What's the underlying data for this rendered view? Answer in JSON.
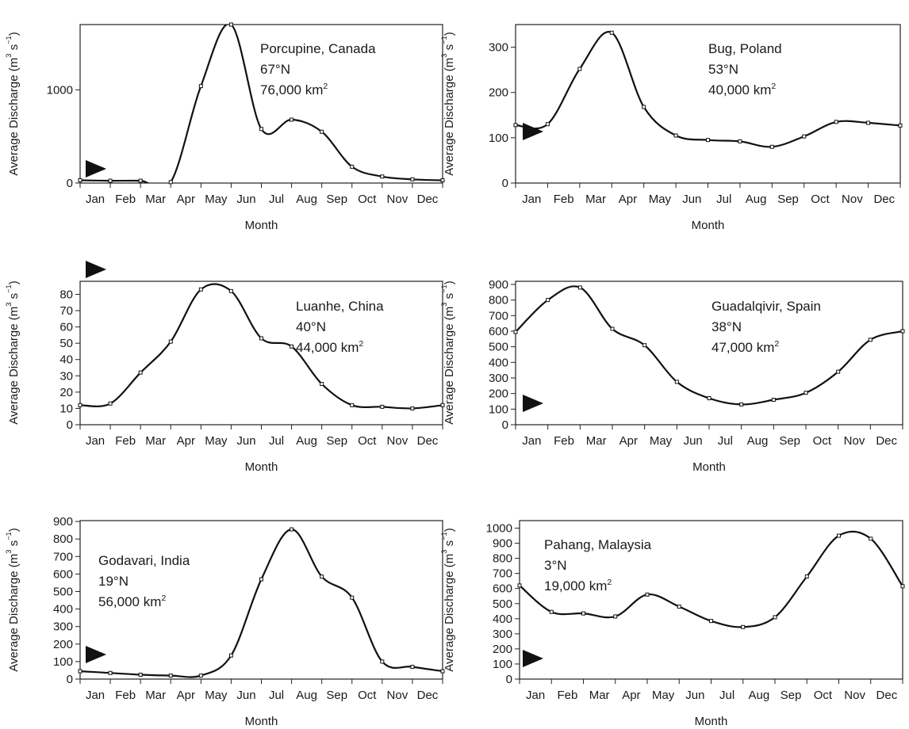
{
  "chart_data": [
    {
      "type": "line",
      "ylabel": "Average Discharge (m³ s⁻¹)",
      "xlabel": "Month",
      "info": [
        "Porcupine, Canada",
        "67°N",
        "76,000 km²"
      ],
      "categories": [
        "Jan",
        "Feb",
        "Mar",
        "Apr",
        "May",
        "Jun",
        "Jul",
        "Aug",
        "Sep",
        "Oct",
        "Nov",
        "Dec"
      ],
      "x": [
        0,
        1,
        2,
        3,
        4,
        5,
        6,
        7,
        8,
        9,
        10,
        11,
        12,
        13
      ],
      "values": [
        30,
        25,
        25,
        10,
        1040,
        1700,
        580,
        680,
        550,
        175,
        70,
        40,
        30,
        30
      ],
      "ylim": [
        0,
        1700
      ],
      "yticks": [
        0,
        1000
      ],
      "grid": false
    },
    {
      "type": "line",
      "ylabel": "Average Discharge (m³ s⁻¹)",
      "xlabel": "Month",
      "info": [
        "Bug, Poland",
        "53°N",
        "40,000 km²"
      ],
      "categories": [
        "Jan",
        "Feb",
        "Mar",
        "Apr",
        "May",
        "Jun",
        "Jul",
        "Aug",
        "Sep",
        "Oct",
        "Nov",
        "Dec"
      ],
      "x": [
        0,
        1,
        2,
        3,
        4,
        5,
        6,
        7,
        8,
        9,
        10,
        11,
        12
      ],
      "values": [
        128,
        130,
        252,
        332,
        168,
        105,
        95,
        92,
        80,
        103,
        135,
        133,
        127
      ],
      "ylim": [
        0,
        350
      ],
      "yticks": [
        0,
        100,
        200,
        300
      ],
      "grid": false
    },
    {
      "type": "line",
      "ylabel": "Average Discharge (m³ s⁻¹)",
      "xlabel": "Month",
      "info": [
        "Luanhe, China",
        "40°N",
        "44,000 km²"
      ],
      "categories": [
        "Jan",
        "Feb",
        "Mar",
        "Apr",
        "May",
        "Jun",
        "Jul",
        "Aug",
        "Sep",
        "Oct",
        "Nov",
        "Dec"
      ],
      "x": [
        0,
        1,
        2,
        3,
        4,
        5,
        6,
        7,
        8,
        9,
        10,
        11,
        12
      ],
      "values": [
        12,
        13,
        32,
        51,
        83,
        82,
        53,
        48,
        25,
        12,
        11,
        10,
        12
      ],
      "ylim": [
        0,
        88
      ],
      "yticks": [
        0,
        10,
        20,
        30,
        40,
        50,
        60,
        70,
        80
      ],
      "grid": false
    },
    {
      "type": "line",
      "ylabel": "Average Discharge (m³ s⁻¹)",
      "xlabel": "Month",
      "info": [
        "Guadalqivir, Spain",
        "38°N",
        "47,000 km²"
      ],
      "categories": [
        "Jan",
        "Feb",
        "Mar",
        "Apr",
        "May",
        "Jun",
        "Jul",
        "Aug",
        "Sep",
        "Oct",
        "Nov",
        "Dec"
      ],
      "x": [
        0,
        1,
        2,
        3,
        4,
        5,
        6,
        7,
        8,
        9,
        10,
        11,
        12
      ],
      "values": [
        595,
        800,
        880,
        615,
        510,
        275,
        170,
        130,
        160,
        205,
        340,
        545,
        600
      ],
      "ylim": [
        0,
        920
      ],
      "yticks": [
        0,
        100,
        200,
        300,
        400,
        500,
        600,
        700,
        800,
        900
      ],
      "grid": false
    },
    {
      "type": "line",
      "ylabel": "Average Discharge (m³ s⁻¹)",
      "xlabel": "Month",
      "info": [
        "Godavari, India",
        "19°N",
        "56,000 km²"
      ],
      "categories": [
        "Jan",
        "Feb",
        "Mar",
        "Apr",
        "May",
        "Jun",
        "Jul",
        "Aug",
        "Sep",
        "Oct",
        "Nov",
        "Dec"
      ],
      "x": [
        0,
        1,
        2,
        3,
        4,
        5,
        6,
        7,
        8,
        9,
        10,
        11,
        12
      ],
      "values": [
        45,
        35,
        25,
        20,
        20,
        135,
        570,
        855,
        585,
        465,
        100,
        70,
        45
      ],
      "ylim": [
        0,
        905
      ],
      "yticks": [
        0,
        100,
        200,
        300,
        400,
        500,
        600,
        700,
        800,
        900
      ],
      "grid": false
    },
    {
      "type": "line",
      "ylabel": "Average Discharge (m³ s⁻¹)",
      "xlabel": "Month",
      "info": [
        "Pahang, Malaysia",
        "3°N",
        "19,000 km²"
      ],
      "categories": [
        "Jan",
        "Feb",
        "Mar",
        "Apr",
        "May",
        "Jun",
        "Jul",
        "Aug",
        "Sep",
        "Oct",
        "Nov",
        "Dec"
      ],
      "x": [
        0,
        1,
        2,
        3,
        4,
        5,
        6,
        7,
        8,
        9,
        10,
        11,
        12
      ],
      "values": [
        620,
        445,
        435,
        415,
        560,
        480,
        385,
        345,
        410,
        680,
        950,
        930,
        615
      ],
      "ylim": [
        0,
        1050
      ],
      "yticks": [
        0,
        100,
        200,
        300,
        400,
        500,
        600,
        700,
        800,
        900,
        1000
      ],
      "grid": false
    }
  ]
}
